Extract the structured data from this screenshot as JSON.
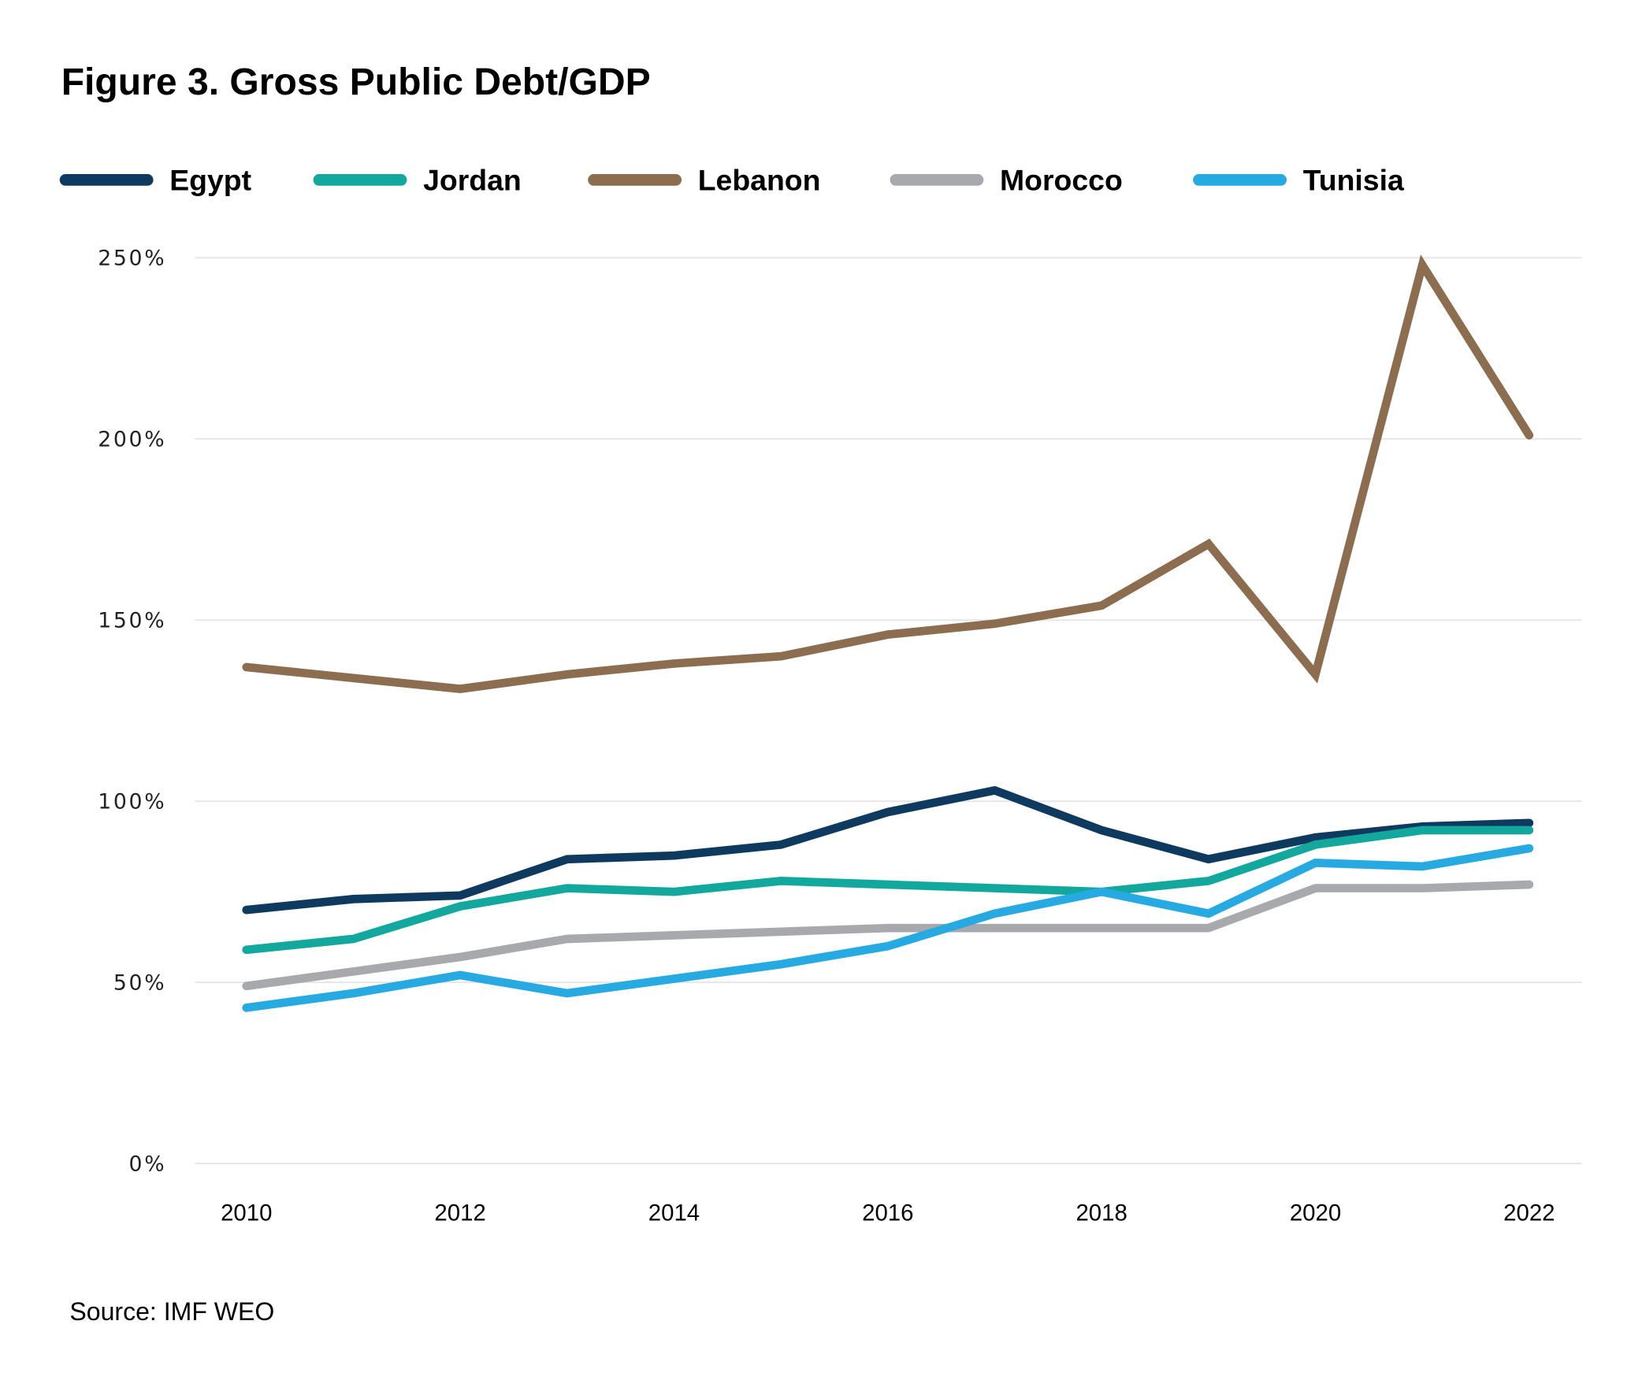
{
  "chart_data": {
    "type": "line",
    "title": "Figure 3. Gross Public Debt/GDP",
    "source": "Source: IMF WEO",
    "xlabel": "",
    "ylabel": "",
    "x": [
      2010,
      2011,
      2012,
      2013,
      2014,
      2015,
      2016,
      2017,
      2018,
      2019,
      2020,
      2021,
      2022
    ],
    "x_ticks": [
      2010,
      2012,
      2014,
      2016,
      2018,
      2020,
      2022
    ],
    "y_ticks": [
      0,
      50,
      100,
      150,
      200,
      250
    ],
    "y_tick_suffix": "%",
    "ylim": [
      0,
      250
    ],
    "xlim": [
      2010,
      2022
    ],
    "grid": "horizontal",
    "legend_placement": "top",
    "series": [
      {
        "name": "Egypt",
        "color": "#0f3a60",
        "values": [
          70,
          73,
          74,
          84,
          85,
          88,
          97,
          103,
          92,
          84,
          90,
          93,
          94
        ]
      },
      {
        "name": "Jordan",
        "color": "#13a89e",
        "values": [
          59,
          62,
          71,
          76,
          75,
          78,
          77,
          76,
          75,
          78,
          88,
          92,
          92
        ]
      },
      {
        "name": "Lebanon",
        "color": "#8c6d4f",
        "values": [
          137,
          134,
          131,
          135,
          138,
          140,
          146,
          149,
          154,
          171,
          135,
          248,
          201
        ]
      },
      {
        "name": "Morocco",
        "color": "#a7a9ac",
        "values": [
          49,
          53,
          57,
          62,
          63,
          64,
          65,
          65,
          65,
          65,
          76,
          76,
          77
        ]
      },
      {
        "name": "Tunisia",
        "color": "#27aae1",
        "values": [
          43,
          47,
          52,
          47,
          51,
          55,
          60,
          69,
          75,
          69,
          83,
          82,
          87
        ]
      }
    ]
  }
}
